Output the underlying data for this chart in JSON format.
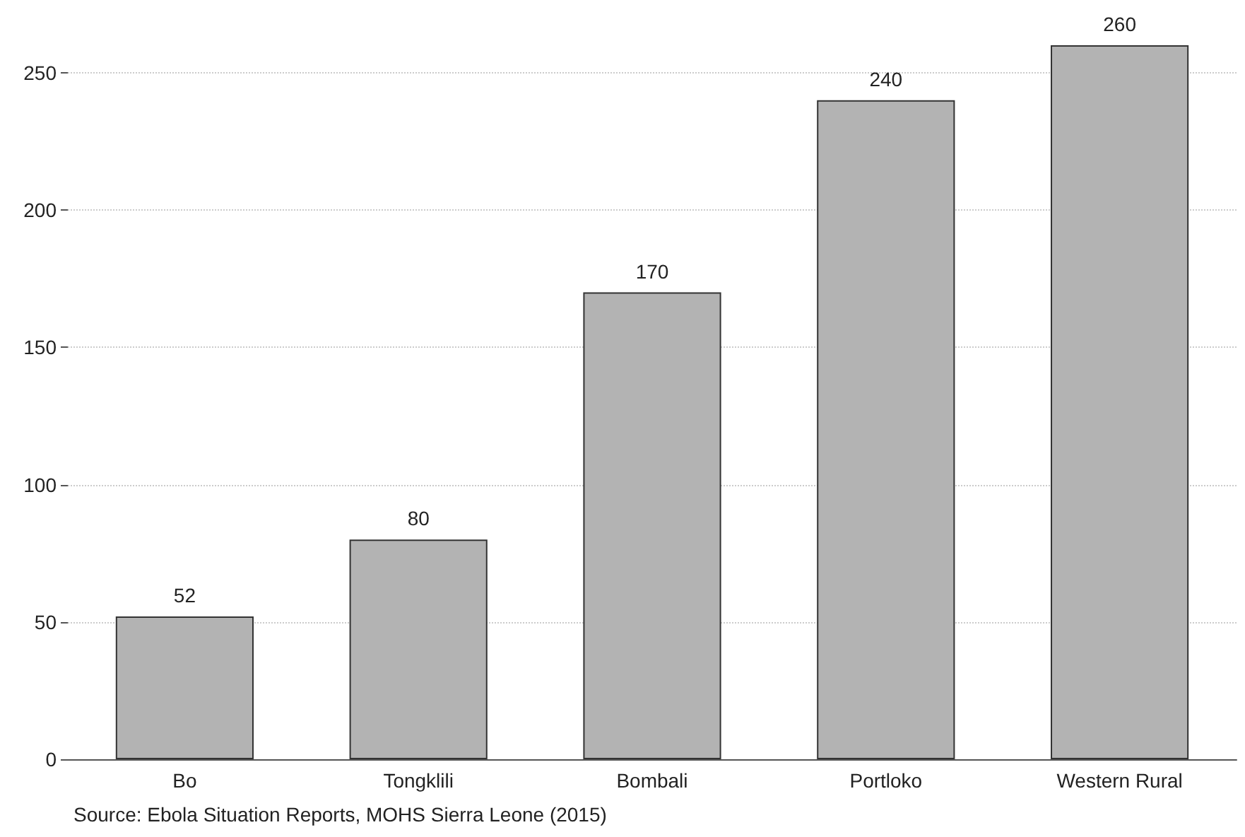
{
  "chart_data": {
    "type": "bar",
    "categories": [
      "Bo",
      "Tongklili",
      "Bombali",
      "Portloko",
      "Western Rural"
    ],
    "values": [
      52,
      80,
      170,
      240,
      260
    ],
    "color": "#b3b3b3",
    "ylim": [
      0,
      260
    ],
    "yticks": [
      0,
      50,
      100,
      150,
      200,
      250
    ],
    "grid": "y",
    "data_labels": true,
    "annotations": [
      "Source: Ebola Situation Reports, MOHS Sierra Leone (2015)"
    ]
  }
}
